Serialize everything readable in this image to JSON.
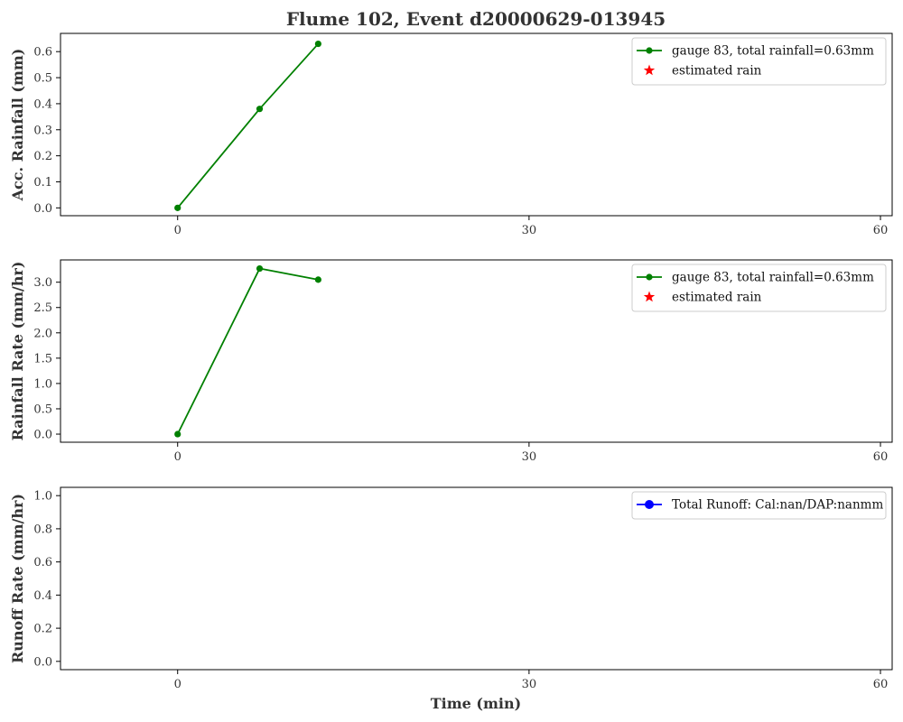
{
  "figure": {
    "title": "Flume 102, Event d20000629-013945",
    "xlabel": "Time (min)"
  },
  "colors": {
    "gauge_series": "#008000",
    "estimated_rain": "#ff0000",
    "runoff_series": "#0000ff"
  },
  "chart_data": [
    {
      "type": "line",
      "ylabel": "Acc. Rainfall (mm)",
      "xlim": [
        -10,
        61
      ],
      "ylim": [
        -0.03,
        0.67
      ],
      "xticks": [
        0,
        30,
        60
      ],
      "yticks": [
        0.0,
        0.1,
        0.2,
        0.3,
        0.4,
        0.5,
        0.6
      ],
      "grid": false,
      "legend_position": "top-right",
      "series": [
        {
          "name": "gauge 83, total rainfall=0.63mm",
          "color": "#008000",
          "marker": "circle",
          "x": [
            0,
            7,
            12
          ],
          "y": [
            0.0,
            0.38,
            0.63
          ]
        },
        {
          "name": "estimated rain",
          "color": "#ff0000",
          "marker": "star",
          "x": [],
          "y": []
        }
      ]
    },
    {
      "type": "line",
      "ylabel": "Rainfall Rate (mm/hr)",
      "xlim": [
        -10,
        61
      ],
      "ylim": [
        -0.16,
        3.44
      ],
      "xticks": [
        0,
        30,
        60
      ],
      "yticks": [
        0.0,
        0.5,
        1.0,
        1.5,
        2.0,
        2.5,
        3.0
      ],
      "grid": false,
      "legend_position": "top-right",
      "series": [
        {
          "name": "gauge 83, total rainfall=0.63mm",
          "color": "#008000",
          "marker": "circle",
          "x": [
            0,
            7,
            12
          ],
          "y": [
            0.0,
            3.27,
            3.05
          ]
        },
        {
          "name": "estimated rain",
          "color": "#ff0000",
          "marker": "star",
          "x": [],
          "y": []
        }
      ]
    },
    {
      "type": "line",
      "ylabel": "Runoff Rate (mm/hr)",
      "xlabel": "Time (min)",
      "xlim": [
        -10,
        61
      ],
      "ylim": [
        -0.05,
        1.05
      ],
      "xticks": [
        0,
        30,
        60
      ],
      "yticks": [
        0.0,
        0.2,
        0.4,
        0.6,
        0.8,
        1.0
      ],
      "grid": false,
      "legend_position": "top-right",
      "series": [
        {
          "name": "Total Runoff: Cal:nan/DAP:nanmm",
          "color": "#0000ff",
          "marker": "circle",
          "x": [],
          "y": []
        }
      ]
    }
  ]
}
